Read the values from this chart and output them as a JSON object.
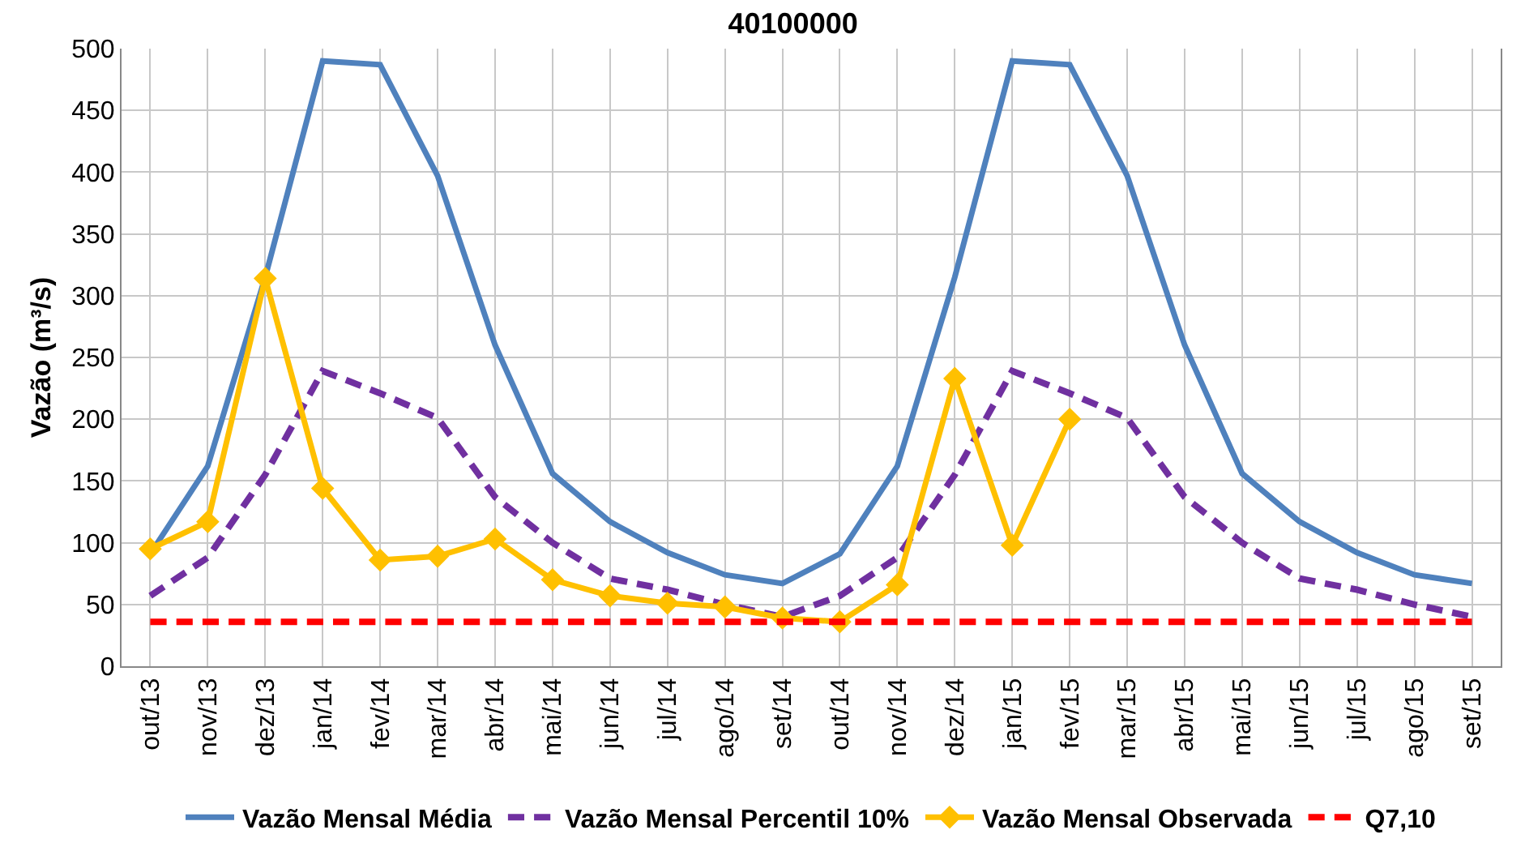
{
  "chart_data": {
    "type": "line",
    "title": "40100000",
    "ylabel": "Vazão (m³/s)",
    "categories": [
      "out/13",
      "nov/13",
      "dez/13",
      "jan/14",
      "fev/14",
      "mar/14",
      "abr/14",
      "mai/14",
      "jun/14",
      "jul/14",
      "ago/14",
      "set/14",
      "out/14",
      "nov/14",
      "dez/14",
      "jan/15",
      "fev/15",
      "mar/15",
      "abr/15",
      "mai/15",
      "jun/15",
      "jul/15",
      "ago/15",
      "set/15"
    ],
    "series": [
      {
        "name": "Vazão Mensal Média",
        "color": "#4f81bd",
        "line_style": "solid",
        "marker": "none",
        "values": [
          91,
          162,
          315,
          490,
          487,
          397,
          260,
          156,
          117,
          92,
          74,
          67,
          91,
          162,
          315,
          490,
          487,
          397,
          260,
          156,
          117,
          92,
          74,
          67
        ]
      },
      {
        "name": "Vazão Mensal Percentil 10%",
        "color": "#7030a0",
        "line_style": "dashed",
        "marker": "none",
        "values": [
          57,
          88,
          155,
          239,
          221,
          201,
          137,
          100,
          71,
          62,
          50,
          40,
          57,
          88,
          155,
          239,
          221,
          201,
          137,
          100,
          71,
          62,
          50,
          40
        ]
      },
      {
        "name": "Vazão Mensal Observada",
        "color": "#ffc000",
        "line_style": "solid",
        "marker": "diamond",
        "values": [
          95,
          117,
          314,
          144,
          86,
          89,
          103,
          70,
          57,
          51,
          48,
          39,
          36,
          66,
          233,
          98,
          200,
          null,
          null,
          null,
          null,
          null,
          null,
          null
        ]
      },
      {
        "name": "Q7,10",
        "color": "#ff0000",
        "line_style": "dashed",
        "marker": "none",
        "values": [
          36,
          36,
          36,
          36,
          36,
          36,
          36,
          36,
          36,
          36,
          36,
          36,
          36,
          36,
          36,
          36,
          36,
          36,
          36,
          36,
          36,
          36,
          36,
          36
        ]
      }
    ],
    "ylim": [
      0,
      500
    ],
    "yticks": [
      0,
      50,
      100,
      150,
      200,
      250,
      300,
      350,
      400,
      450,
      500
    ],
    "grid": true,
    "legend": "bottom"
  }
}
